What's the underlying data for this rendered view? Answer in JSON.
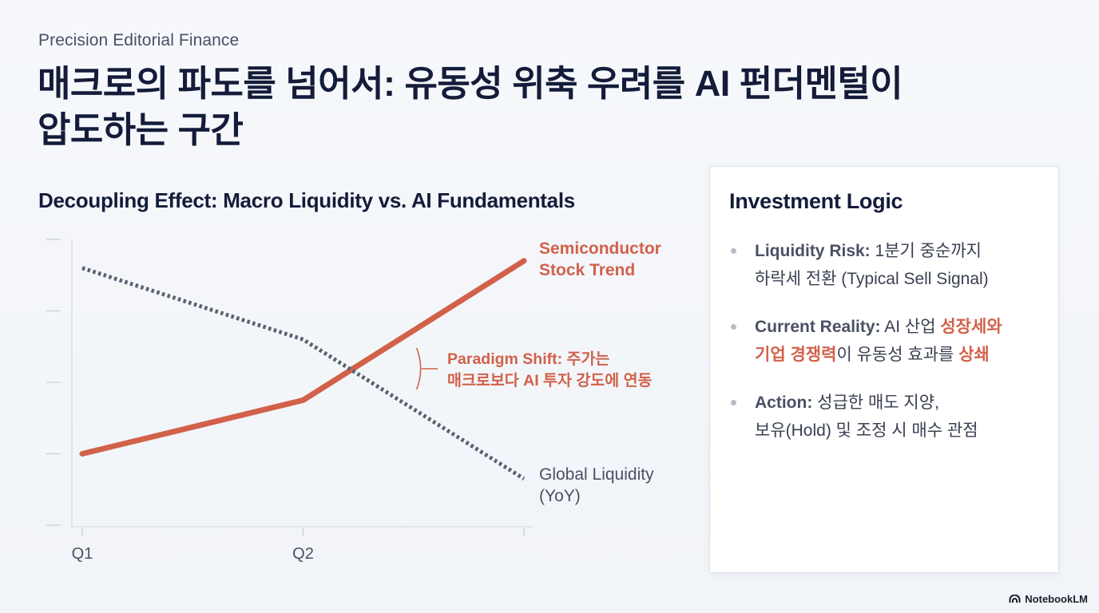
{
  "header": {
    "eyebrow": "Precision Editorial Finance",
    "title_line1": "매크로의 파도를 넘어서: 유동성 위축 우려를 AI 펀더멘털이",
    "title_line2": "압도하는 구간"
  },
  "chart_data": {
    "type": "line",
    "title": "Decoupling Effect: Macro Liquidity vs. AI Fundamentals",
    "categories": [
      "Q1",
      "Q2",
      ""
    ],
    "series": [
      {
        "name": "Semiconductor Stock Trend",
        "name_lines": [
          "Semiconductor",
          "Stock Trend"
        ],
        "style": "solid",
        "color": "#d2614a",
        "values": [
          1.0,
          1.75,
          3.7
        ]
      },
      {
        "name": "Global Liquidity (YoY)",
        "name_lines": [
          "Global Liquidity",
          "(YoY)"
        ],
        "style": "dotted",
        "color": "#5a6070",
        "values": [
          3.6,
          2.6,
          0.65
        ]
      }
    ],
    "ylim": [
      0,
      4
    ],
    "y_ticks": [
      0,
      1,
      2,
      3,
      4
    ],
    "y_tick_labels_shown": false,
    "grid": false,
    "annotation": {
      "lines": [
        "Paradigm Shift: 주가는",
        "매크로보다 AI 투자 강도에 연동"
      ],
      "color": "#d2614a",
      "x_at": 1.42
    }
  },
  "panel": {
    "title": "Investment Logic",
    "items": [
      {
        "label": "Liquidity Risk:",
        "line1_rest": " 1분기 중순까지",
        "line2": "하락세 전환 (Typical Sell Signal)"
      },
      {
        "label": "Current Reality:",
        "line1_rest": " AI 산업 ",
        "line1_hl": "성장세와",
        "line2_hl": "기업 경쟁력",
        "line2_mid": "이 유동성 효과를 ",
        "line2_hl2": "상쇄"
      },
      {
        "label": "Action:",
        "line1_rest": " 성급한 매도 지양,",
        "line2": "보유(Hold) 및 조정 시 매수 관점"
      }
    ]
  },
  "brand": {
    "name": "NotebookLM",
    "icon": "notebooklm-logo-icon"
  },
  "colors": {
    "accent": "#d2614a",
    "navy": "#141c3a",
    "muted": "#5a6070"
  }
}
